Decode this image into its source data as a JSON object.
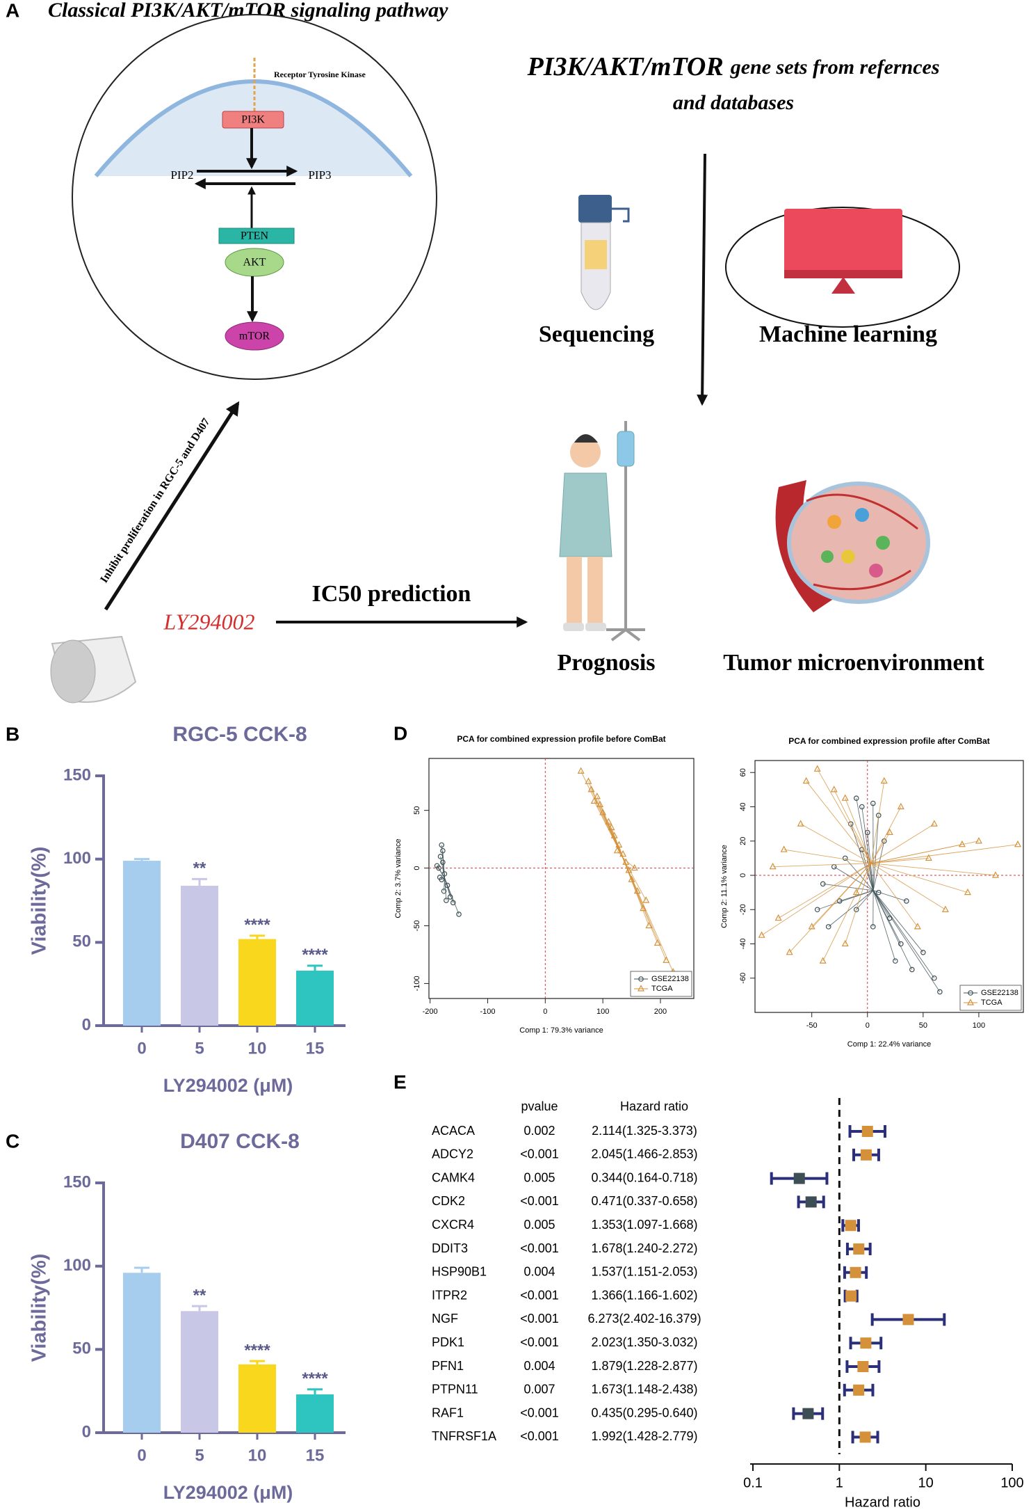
{
  "panel_a": {
    "label": "A",
    "title": "Classical PI3K/AKT/mTOR signaling pathway",
    "receptor": "Receptor Tyrosine Kinase",
    "nodes": [
      "PI3K",
      "PIP2",
      "PIP3",
      "PTEN",
      "AKT",
      "mTOR"
    ],
    "gene_sets_em": "PI3K/AKT/mTOR",
    "gene_sets_rest": "gene sets from refernces",
    "gene_sets_line2": "and databases",
    "sequencing": "Sequencing",
    "machine_learning": "Machine learning",
    "inhibit": "Inhibit proliferation in RGC-5 and D407",
    "drug": "LY294002",
    "ic50": "IC50 prediction",
    "prognosis": "Prognosis",
    "tme": "Tumor microenvironment"
  },
  "chart_data": [
    {
      "panel": "B",
      "type": "bar",
      "title": "RGC-5 CCK-8",
      "categories": [
        "0",
        "5",
        "10",
        "15"
      ],
      "values": [
        99,
        84,
        52,
        33
      ],
      "errors": [
        1,
        4,
        2,
        3
      ],
      "significance": [
        null,
        "**",
        "****",
        "****"
      ],
      "colors": [
        "#a6cdee",
        "#c9c7e6",
        "#f9d71c",
        "#2ec4c0"
      ],
      "xlabel": "LY294002 (μM)",
      "ylabel": "Viability(%)",
      "ylim": [
        0,
        150
      ],
      "yticks": [
        0,
        50,
        100,
        150
      ]
    },
    {
      "panel": "C",
      "type": "bar",
      "title": "D407 CCK-8",
      "categories": [
        "0",
        "5",
        "10",
        "15"
      ],
      "values": [
        96,
        73,
        41,
        23
      ],
      "errors": [
        3,
        3,
        2,
        3
      ],
      "significance": [
        null,
        "**",
        "****",
        "****"
      ],
      "colors": [
        "#a6cdee",
        "#c9c7e6",
        "#f9d71c",
        "#2ec4c0"
      ],
      "xlabel": "LY294002 (μM)",
      "ylabel": "Viability(%)",
      "ylim": [
        0,
        150
      ],
      "yticks": [
        0,
        50,
        100,
        150
      ]
    },
    {
      "panel": "D",
      "type": "scatter",
      "title": "PCA for combined expression profile before ComBat",
      "xlabel": "Comp 1: 79.3% variance",
      "ylabel": "Comp 2: 3.7% variance",
      "xlim": [
        -202,
        258
      ],
      "ylim": [
        -113,
        95
      ],
      "xticks": [
        -200,
        -100,
        0,
        100,
        200
      ],
      "yticks": [
        -100,
        -50,
        0,
        50
      ],
      "legend": "lower right",
      "series": [
        {
          "name": "GSE22138",
          "color": "#3d4f55",
          "marker": "circle",
          "x": [
            -180,
            -182,
            -178,
            -185,
            -175,
            -180,
            -170,
            -183,
            -176,
            -165,
            -160,
            -150,
            -172,
            -188,
            -178
          ],
          "y": [
            20,
            10,
            5,
            0,
            -5,
            -10,
            -15,
            -8,
            -20,
            -25,
            -30,
            -40,
            -28,
            2,
            15
          ]
        },
        {
          "name": "TCGA",
          "color": "#d4913a",
          "marker": "triangle",
          "x": [
            62,
            75,
            80,
            90,
            95,
            100,
            110,
            115,
            120,
            128,
            135,
            140,
            145,
            150,
            160,
            170,
            180,
            195,
            210,
            222,
            85,
            125,
            155,
            175
          ],
          "y": [
            84,
            75,
            68,
            62,
            55,
            48,
            40,
            35,
            28,
            20,
            12,
            5,
            -2,
            -10,
            -20,
            -35,
            -50,
            -65,
            -80,
            -90,
            58,
            15,
            0,
            -28
          ]
        }
      ]
    },
    {
      "type": "scatter",
      "title": "PCA for combined expression profile after ComBat",
      "xlabel": "Comp 1: 22.4% variance",
      "ylabel": "Comp 2: 11.1% variance",
      "xlim": [
        -101,
        140
      ],
      "ylim": [
        -80,
        67
      ],
      "xticks": [
        -50,
        0,
        50,
        100
      ],
      "yticks": [
        -60,
        -40,
        -20,
        0,
        20,
        40,
        60
      ],
      "legend": "lower right",
      "series": [
        {
          "name": "GSE22138",
          "color": "#3d4f55",
          "marker": "circle",
          "x": [
            -10,
            -5,
            5,
            10,
            -15,
            0,
            15,
            -20,
            -30,
            -40,
            -25,
            -10,
            5,
            20,
            30,
            40,
            65,
            60,
            25,
            -35,
            10,
            -5,
            35,
            -45,
            50
          ],
          "y": [
            45,
            40,
            42,
            35,
            30,
            25,
            20,
            10,
            5,
            -5,
            -15,
            -20,
            -30,
            -25,
            -40,
            -55,
            -68,
            -60,
            -50,
            -30,
            -10,
            15,
            -15,
            -20,
            -45
          ]
        },
        {
          "name": "TCGA",
          "color": "#d4913a",
          "marker": "triangle",
          "x": [
            -45,
            -55,
            -30,
            -20,
            -60,
            -75,
            -85,
            -95,
            -80,
            -70,
            -50,
            -40,
            -20,
            15,
            30,
            60,
            85,
            100,
            135,
            115,
            90,
            70,
            45,
            20,
            -10,
            55
          ],
          "y": [
            62,
            55,
            50,
            45,
            30,
            15,
            5,
            -35,
            -25,
            -45,
            -30,
            -50,
            -40,
            55,
            40,
            30,
            18,
            20,
            18,
            0,
            -10,
            -20,
            -30,
            25,
            -10,
            10
          ]
        }
      ]
    },
    {
      "panel": "E",
      "type": "forest",
      "columns": [
        "pvalue",
        "Hazard ratio"
      ],
      "categories": [
        "ACACA",
        "ADCY2",
        "CAMK4",
        "CDK2",
        "CXCR4",
        "DDIT3",
        "HSP90B1",
        "ITPR2",
        "NGF",
        "PDK1",
        "PFN1",
        "PTPN11",
        "RAF1",
        "TNFRSF1A"
      ],
      "pvalues": [
        "0.002",
        "<0.001",
        "0.005",
        "<0.001",
        "0.005",
        "<0.001",
        "0.004",
        "<0.001",
        "<0.001",
        "<0.001",
        "0.004",
        "0.007",
        "<0.001",
        "<0.001"
      ],
      "values": [
        2.114,
        2.045,
        0.344,
        0.471,
        1.353,
        1.678,
        1.537,
        1.366,
        6.273,
        2.023,
        1.879,
        1.673,
        0.435,
        1.992
      ],
      "lower": [
        1.325,
        1.466,
        0.164,
        0.337,
        1.097,
        1.24,
        1.151,
        1.166,
        2.402,
        1.35,
        1.228,
        1.148,
        0.295,
        1.428
      ],
      "upper": [
        3.373,
        2.853,
        0.718,
        0.658,
        1.668,
        2.272,
        2.053,
        1.602,
        16.379,
        3.032,
        2.877,
        2.438,
        0.64,
        2.779
      ],
      "value_labels": [
        "2.114(1.325-3.373)",
        "2.045(1.466-2.853)",
        "0.344(0.164-0.718)",
        "0.471(0.337-0.658)",
        "1.353(1.097-1.668)",
        "1.678(1.240-2.272)",
        "1.537(1.151-2.053)",
        "1.366(1.166-1.602)",
        "6.273(2.402-16.379)",
        "2.023(1.350-3.032)",
        "1.879(1.228-2.877)",
        "1.673(1.148-2.438)",
        "0.435(0.295-0.640)",
        "1.992(1.428-2.779)"
      ],
      "colors": [
        "#d4913a",
        "#d4913a",
        "#3d4f55",
        "#3d4f55",
        "#d4913a",
        "#d4913a",
        "#d4913a",
        "#d4913a",
        "#d4913a",
        "#d4913a",
        "#d4913a",
        "#d4913a",
        "#3d4f55",
        "#d4913a"
      ],
      "ci_color": "#2b2f7a",
      "xlabel": "Hazard ratio",
      "xscale": "log",
      "xlim": [
        0.1,
        100
      ],
      "xticks": [
        0.1,
        1,
        10,
        100
      ],
      "reference": 1
    }
  ]
}
